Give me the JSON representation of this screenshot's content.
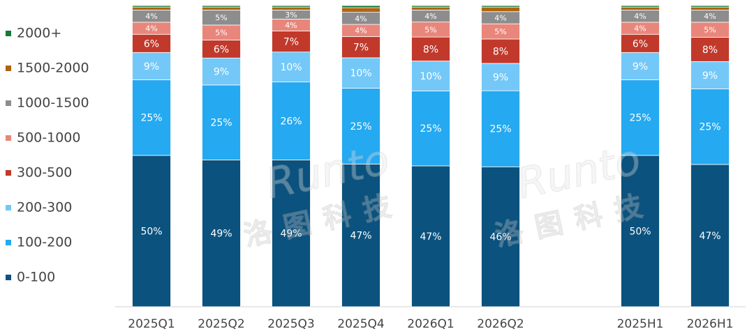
{
  "chart_data": {
    "type": "stacked-bar",
    "watermark": [
      "Runto",
      "洛图科技"
    ],
    "categories": [
      "2025Q1",
      "2025Q2",
      "2025Q3",
      "2025Q4",
      "2026Q1",
      "2026Q2",
      null,
      "2025H1",
      "2026H1"
    ],
    "series": [
      {
        "name": "0-100",
        "color": "#0b527e",
        "values": [
          50,
          49,
          49,
          47,
          47,
          46,
          null,
          50,
          47
        ],
        "value_labels": [
          "50%",
          "49%",
          "49%",
          "47%",
          "47%",
          "46%",
          null,
          "50%",
          "47%"
        ]
      },
      {
        "name": "100-200",
        "color": "#25a9f0",
        "values": [
          25,
          25,
          26,
          25,
          25,
          25,
          null,
          25,
          25
        ],
        "value_labels": [
          "25%",
          "25%",
          "26%",
          "25%",
          "25%",
          "25%",
          null,
          "25%",
          "25%"
        ]
      },
      {
        "name": "200-300",
        "color": "#73c8f8",
        "values": [
          9,
          9,
          10,
          10,
          10,
          9,
          null,
          9,
          9
        ],
        "value_labels": [
          "9%",
          "9%",
          "10%",
          "10%",
          "10%",
          "9%",
          null,
          "9%",
          "9%"
        ]
      },
      {
        "name": "300-500",
        "color": "#c1392b",
        "values": [
          6,
          6,
          7,
          7,
          8,
          8,
          null,
          6,
          8
        ],
        "value_labels": [
          "6%",
          "6%",
          "7%",
          "7%",
          "8%",
          "8%",
          null,
          "6%",
          "8%"
        ]
      },
      {
        "name": "500-1000",
        "color": "#e9867b",
        "values": [
          4,
          5,
          4,
          4,
          5,
          5,
          null,
          4,
          5
        ],
        "value_labels": [
          "4%",
          "5%",
          "4%",
          "4%",
          "5%",
          "5%",
          null,
          "4%",
          "5%"
        ]
      },
      {
        "name": "1000-1500",
        "color": "#8d8d8d",
        "values": [
          4,
          5,
          3,
          4,
          4,
          4,
          null,
          4,
          4
        ],
        "value_labels": [
          "4%",
          "5%",
          "3%",
          "4%",
          "4%",
          "4%",
          null,
          "4%",
          "4%"
        ]
      },
      {
        "name": "1500-2000",
        "color": "#b0640f",
        "values": [
          1,
          1,
          1,
          1.5,
          1,
          1.5,
          null,
          1,
          1
        ]
      },
      {
        "name": "2000+",
        "color": "#157a37",
        "values": [
          0.5,
          0.5,
          0.5,
          0.7,
          0.5,
          0.5,
          null,
          0.5,
          0.5
        ]
      }
    ]
  }
}
